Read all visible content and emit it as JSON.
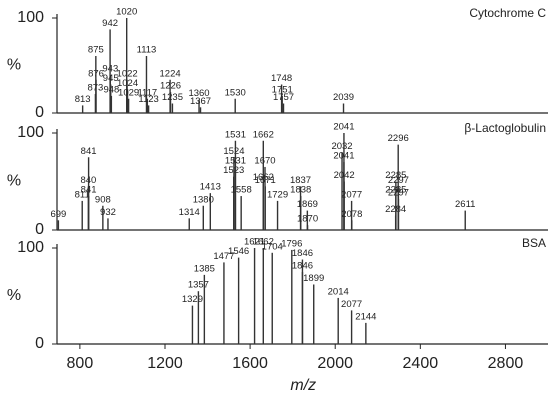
{
  "chart_data": [
    {
      "type": "spectrum",
      "title": "Cytochrome C",
      "ylabel": "%",
      "color": "#333333",
      "x": [
        813,
        873,
        876,
        875,
        942,
        943,
        945,
        948,
        1020,
        1022,
        1024,
        1029,
        1113,
        1117,
        1123,
        1224,
        1226,
        1235,
        1360,
        1367,
        1530,
        1748,
        1751,
        1757,
        2039
      ],
      "values": [
        8,
        20,
        35,
        60,
        88,
        40,
        30,
        18,
        100,
        35,
        25,
        15,
        60,
        15,
        8,
        35,
        22,
        10,
        14,
        6,
        15,
        30,
        18,
        10,
        10
      ],
      "xlim": [
        700,
        3000
      ],
      "ylim": [
        0,
        100
      ],
      "yticks": [
        0,
        100
      ]
    },
    {
      "type": "spectrum",
      "title": "β-Lactoglobulin",
      "ylabel": "%",
      "color": "#333333",
      "x": [
        699,
        811,
        840,
        841,
        841,
        908,
        932,
        1314,
        1380,
        1413,
        1523,
        1524,
        1531,
        1531,
        1558,
        1662,
        1662,
        1670,
        1671,
        1729,
        1837,
        1838,
        1869,
        1870,
        2032,
        2041,
        2041,
        2042,
        2077,
        2078,
        2284,
        2285,
        2285,
        2296,
        2297,
        2297,
        2611
      ],
      "values": [
        10,
        30,
        45,
        75,
        35,
        25,
        12,
        12,
        25,
        38,
        55,
        75,
        92,
        65,
        35,
        92,
        48,
        65,
        45,
        30,
        45,
        35,
        20,
        5,
        80,
        100,
        70,
        50,
        30,
        10,
        15,
        50,
        35,
        88,
        45,
        32,
        20
      ],
      "xlim": [
        700,
        3000
      ],
      "ylim": [
        0,
        100
      ],
      "yticks": [
        0,
        100
      ]
    },
    {
      "type": "spectrum",
      "title": "BSA",
      "ylabel": "%",
      "color": "#333333",
      "x": [
        1329,
        1357,
        1385,
        1477,
        1546,
        1621,
        1662,
        1704,
        1796,
        1846,
        1846,
        1899,
        2014,
        2077,
        2144
      ],
      "values": [
        40,
        55,
        72,
        85,
        90,
        100,
        100,
        95,
        98,
        88,
        75,
        62,
        48,
        35,
        22
      ],
      "xlim": [
        700,
        3000
      ],
      "ylim": [
        0,
        100
      ],
      "yticks": [
        0,
        100
      ],
      "xticks": [
        800,
        1200,
        1600,
        2000,
        2400,
        2800
      ],
      "xlabel": "m/z"
    }
  ]
}
